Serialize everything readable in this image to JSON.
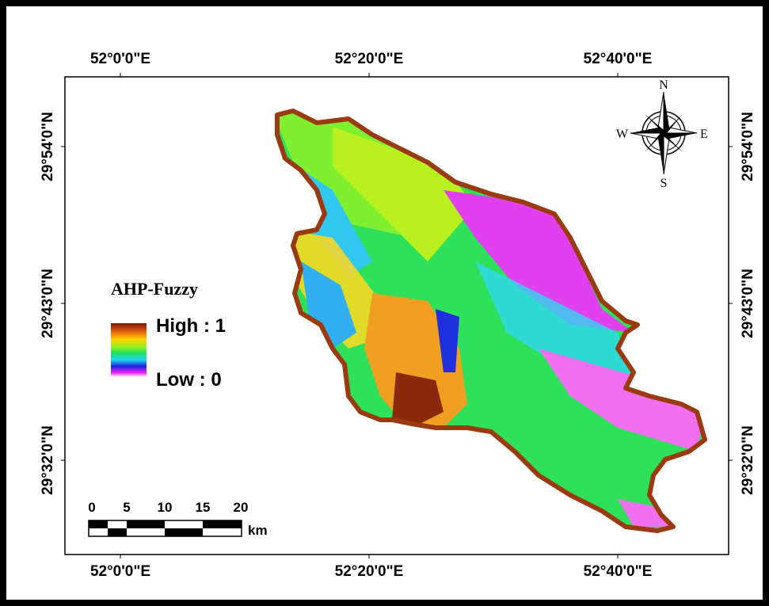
{
  "map": {
    "top_labels": [
      "52°0'0\"E",
      "52°20'0\"E",
      "52°40'0\"E"
    ],
    "bottom_labels": [
      "52°0'0\"E",
      "52°20'0\"E",
      "52°40'0\"E"
    ],
    "left_labels": [
      "29°54'0\"N",
      "29°43'0\"N",
      "29°32'0\"N"
    ],
    "right_labels": [
      "29°54'0\"N",
      "29°43'0\"N",
      "29°32'0\"N"
    ],
    "legend": {
      "title": "AHP-Fuzzy",
      "high": "High : 1",
      "low": "Low : 0"
    },
    "scale_bar": {
      "labels": [
        "0",
        "5",
        "10",
        "15",
        "20"
      ],
      "unit": "km"
    },
    "compass": {
      "north": "N",
      "east": "E",
      "south": "S",
      "west": "W"
    }
  }
}
